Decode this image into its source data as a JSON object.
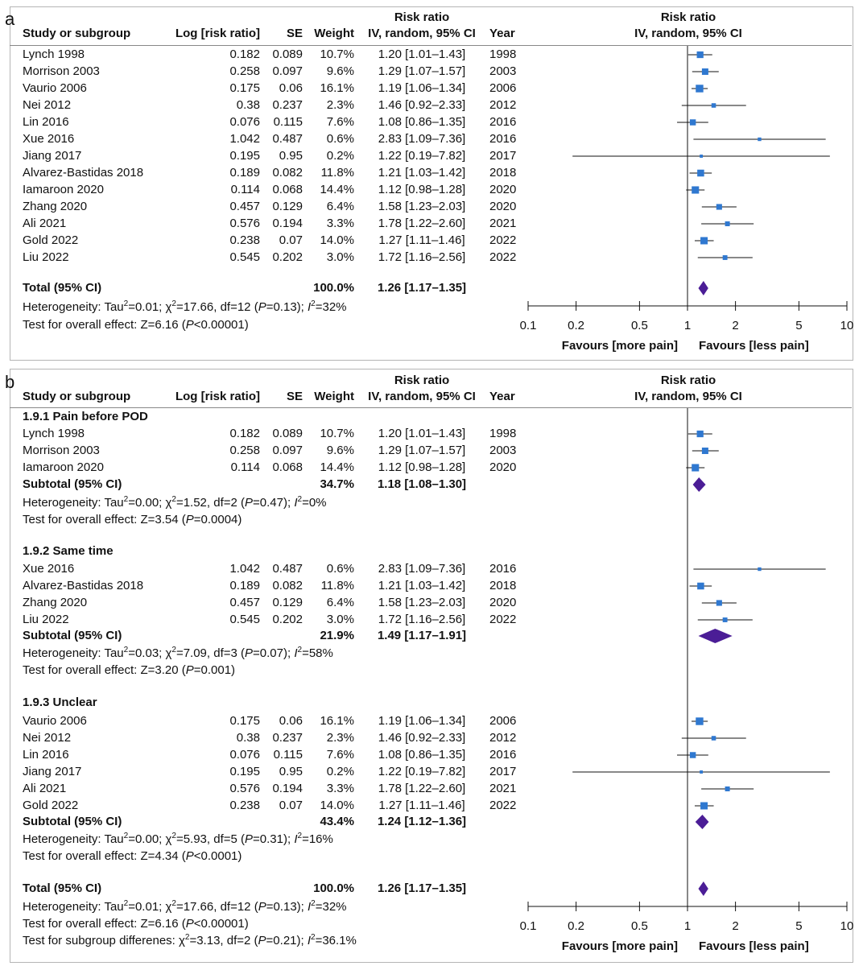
{
  "chart_data": {
    "type": "forest",
    "axis": {
      "scale": "log",
      "ticks": [
        "0.1",
        "0.2",
        "0.5",
        "1",
        "2",
        "5",
        "10"
      ],
      "tick_values": [
        0.1,
        0.2,
        0.5,
        1,
        2,
        5,
        10
      ],
      "left_label": "Favours [more pain]",
      "right_label": "Favours [less pain]"
    },
    "colors": {
      "square": "#2f78d0",
      "diamond": "#4b1d96",
      "line": "#111111"
    },
    "panels": [
      {
        "label": "a",
        "headers": {
          "study": "Study or subgroup",
          "log": "Log [risk ratio]",
          "se": "SE",
          "weight": "Weight",
          "rr_top": "Risk ratio",
          "rr_bottom": "IV, random, 95% CI",
          "year": "Year",
          "plot_top": "Risk ratio",
          "plot_bottom": "IV, random, 95% CI"
        },
        "groups": [
          {
            "studies": [
              {
                "study": "Lynch 1998",
                "log": "0.182",
                "se": "0.089",
                "weight": "10.7%",
                "ci": "1.20 [1.01–1.43]",
                "year": "1998",
                "rr": 1.2,
                "lo": 1.01,
                "hi": 1.43,
                "w": 10.7
              },
              {
                "study": "Morrison 2003",
                "log": "0.258",
                "se": "0.097",
                "weight": "9.6%",
                "ci": "1.29 [1.07–1.57]",
                "year": "2003",
                "rr": 1.29,
                "lo": 1.07,
                "hi": 1.57,
                "w": 9.6
              },
              {
                "study": "Vaurio 2006",
                "log": "0.175",
                "se": "0.06",
                "weight": "16.1%",
                "ci": "1.19 [1.06–1.34]",
                "year": "2006",
                "rr": 1.19,
                "lo": 1.06,
                "hi": 1.34,
                "w": 16.1
              },
              {
                "study": "Nei 2012",
                "log": "0.38",
                "se": "0.237",
                "weight": "2.3%",
                "ci": "1.46 [0.92–2.33]",
                "year": "2012",
                "rr": 1.46,
                "lo": 0.92,
                "hi": 2.33,
                "w": 2.3
              },
              {
                "study": "Lin 2016",
                "log": "0.076",
                "se": "0.115",
                "weight": "7.6%",
                "ci": "1.08 [0.86–1.35]",
                "year": "2016",
                "rr": 1.08,
                "lo": 0.86,
                "hi": 1.35,
                "w": 7.6
              },
              {
                "study": "Xue 2016",
                "log": "1.042",
                "se": "0.487",
                "weight": "0.6%",
                "ci": "2.83 [1.09–7.36]",
                "year": "2016",
                "rr": 2.83,
                "lo": 1.09,
                "hi": 7.36,
                "w": 0.6
              },
              {
                "study": "Jiang 2017",
                "log": "0.195",
                "se": "0.95",
                "weight": "0.2%",
                "ci": "1.22 [0.19–7.82]",
                "year": "2017",
                "rr": 1.22,
                "lo": 0.19,
                "hi": 7.82,
                "w": 0.2
              },
              {
                "study": "Alvarez-Bastidas 2018",
                "log": "0.189",
                "se": "0.082",
                "weight": "11.8%",
                "ci": "1.21 [1.03–1.42]",
                "year": "2018",
                "rr": 1.21,
                "lo": 1.03,
                "hi": 1.42,
                "w": 11.8
              },
              {
                "study": "Iamaroon 2020",
                "log": "0.114",
                "se": "0.068",
                "weight": "14.4%",
                "ci": "1.12 [0.98–1.28]",
                "year": "2020",
                "rr": 1.12,
                "lo": 0.98,
                "hi": 1.28,
                "w": 14.4
              },
              {
                "study": "Zhang 2020",
                "log": "0.457",
                "se": "0.129",
                "weight": "6.4%",
                "ci": "1.58 [1.23–2.03]",
                "year": "2020",
                "rr": 1.58,
                "lo": 1.23,
                "hi": 2.03,
                "w": 6.4
              },
              {
                "study": "Ali 2021",
                "log": "0.576",
                "se": "0.194",
                "weight": "3.3%",
                "ci": "1.78 [1.22–2.60]",
                "year": "2021",
                "rr": 1.78,
                "lo": 1.22,
                "hi": 2.6,
                "w": 3.3
              },
              {
                "study": "Gold 2022",
                "log": "0.238",
                "se": "0.07",
                "weight": "14.0%",
                "ci": "1.27 [1.11–1.46]",
                "year": "2022",
                "rr": 1.27,
                "lo": 1.11,
                "hi": 1.46,
                "w": 14.0
              },
              {
                "study": "Liu 2022",
                "log": "0.545",
                "se": "0.202",
                "weight": "3.0%",
                "ci": "1.72 [1.16–2.56]",
                "year": "2022",
                "rr": 1.72,
                "lo": 1.16,
                "hi": 2.56,
                "w": 3.0
              }
            ]
          }
        ],
        "total": {
          "label": "Total (95% CI)",
          "weight": "100.0%",
          "ci": "1.26 [1.17–1.35]",
          "rr": 1.26,
          "lo": 1.17,
          "hi": 1.35,
          "notes": [
            [
              {
                "t": "Heterogeneity: Tau"
              },
              {
                "t": "2",
                "sup": true
              },
              {
                "t": "=0.01; "
              },
              {
                "t": "χ"
              },
              {
                "t": "2",
                "sup": true
              },
              {
                "t": "=17.66, df=12 ("
              },
              {
                "t": "P",
                "i": true
              },
              {
                "t": "=0.13); "
              },
              {
                "t": "I",
                "i": true
              },
              {
                "t": "2",
                "sup": true
              },
              {
                "t": "=32%"
              }
            ],
            [
              {
                "t": "Test for overall effect: Z=6.16 ("
              },
              {
                "t": "P",
                "i": true
              },
              {
                "t": "<0.00001)"
              }
            ]
          ]
        }
      },
      {
        "label": "b",
        "headers": {
          "study": "Study or subgroup",
          "log": "Log [risk ratio]",
          "se": "SE",
          "weight": "Weight",
          "rr_top": "Risk ratio",
          "rr_bottom": "IV, random, 95% CI",
          "year": "Year",
          "plot_top": "Risk ratio",
          "plot_bottom": "IV, random, 95% CI"
        },
        "groups": [
          {
            "title": "1.9.1 Pain before POD",
            "studies": [
              {
                "study": "Lynch 1998",
                "log": "0.182",
                "se": "0.089",
                "weight": "10.7%",
                "ci": "1.20 [1.01–1.43]",
                "year": "1998",
                "rr": 1.2,
                "lo": 1.01,
                "hi": 1.43,
                "w": 10.7
              },
              {
                "study": "Morrison 2003",
                "log": "0.258",
                "se": "0.097",
                "weight": "9.6%",
                "ci": "1.29 [1.07–1.57]",
                "year": "2003",
                "rr": 1.29,
                "lo": 1.07,
                "hi": 1.57,
                "w": 9.6
              },
              {
                "study": "Iamaroon 2020",
                "log": "0.114",
                "se": "0.068",
                "weight": "14.4%",
                "ci": "1.12 [0.98–1.28]",
                "year": "2020",
                "rr": 1.12,
                "lo": 0.98,
                "hi": 1.28,
                "w": 14.4
              }
            ],
            "subtotal": {
              "label": "Subtotal (95% CI)",
              "weight": "34.7%",
              "ci": "1.18 [1.08–1.30]",
              "rr": 1.18,
              "lo": 1.08,
              "hi": 1.3
            },
            "notes": [
              [
                {
                  "t": "Heterogeneity: Tau"
                },
                {
                  "t": "2",
                  "sup": true
                },
                {
                  "t": "=0.00; "
                },
                {
                  "t": "χ"
                },
                {
                  "t": "2",
                  "sup": true
                },
                {
                  "t": "=1.52, df=2 ("
                },
                {
                  "t": "P",
                  "i": true
                },
                {
                  "t": "=0.47); "
                },
                {
                  "t": "I",
                  "i": true
                },
                {
                  "t": "2",
                  "sup": true
                },
                {
                  "t": "=0%"
                }
              ],
              [
                {
                  "t": "Test for overall effect: Z=3.54 ("
                },
                {
                  "t": "P",
                  "i": true
                },
                {
                  "t": "=0.0004)"
                }
              ]
            ]
          },
          {
            "title": "1.9.2 Same time",
            "studies": [
              {
                "study": "Xue 2016",
                "log": "1.042",
                "se": "0.487",
                "weight": "0.6%",
                "ci": "2.83 [1.09–7.36]",
                "year": "2016",
                "rr": 2.83,
                "lo": 1.09,
                "hi": 7.36,
                "w": 0.6
              },
              {
                "study": "Alvarez-Bastidas 2018",
                "log": "0.189",
                "se": "0.082",
                "weight": "11.8%",
                "ci": "1.21 [1.03–1.42]",
                "year": "2018",
                "rr": 1.21,
                "lo": 1.03,
                "hi": 1.42,
                "w": 11.8
              },
              {
                "study": "Zhang 2020",
                "log": "0.457",
                "se": "0.129",
                "weight": "6.4%",
                "ci": "1.58 [1.23–2.03]",
                "year": "2020",
                "rr": 1.58,
                "lo": 1.23,
                "hi": 2.03,
                "w": 6.4
              },
              {
                "study": "Liu 2022",
                "log": "0.545",
                "se": "0.202",
                "weight": "3.0%",
                "ci": "1.72 [1.16–2.56]",
                "year": "2022",
                "rr": 1.72,
                "lo": 1.16,
                "hi": 2.56,
                "w": 3.0
              }
            ],
            "subtotal": {
              "label": "Subtotal (95% CI)",
              "weight": "21.9%",
              "ci": "1.49 [1.17–1.91]",
              "rr": 1.49,
              "lo": 1.17,
              "hi": 1.91
            },
            "notes": [
              [
                {
                  "t": "Heterogeneity: Tau"
                },
                {
                  "t": "2",
                  "sup": true
                },
                {
                  "t": "=0.03; "
                },
                {
                  "t": "χ"
                },
                {
                  "t": "2",
                  "sup": true
                },
                {
                  "t": "=7.09, df=3 ("
                },
                {
                  "t": "P",
                  "i": true
                },
                {
                  "t": "=0.07); "
                },
                {
                  "t": "I",
                  "i": true
                },
                {
                  "t": "2",
                  "sup": true
                },
                {
                  "t": "=58%"
                }
              ],
              [
                {
                  "t": "Test for overall effect: Z=3.20 ("
                },
                {
                  "t": "P",
                  "i": true
                },
                {
                  "t": "=0.001)"
                }
              ]
            ]
          },
          {
            "title": "1.9.3 Unclear",
            "studies": [
              {
                "study": "Vaurio 2006",
                "log": "0.175",
                "se": "0.06",
                "weight": "16.1%",
                "ci": "1.19 [1.06–1.34]",
                "year": "2006",
                "rr": 1.19,
                "lo": 1.06,
                "hi": 1.34,
                "w": 16.1
              },
              {
                "study": "Nei 2012",
                "log": "0.38",
                "se": "0.237",
                "weight": "2.3%",
                "ci": "1.46 [0.92–2.33]",
                "year": "2012",
                "rr": 1.46,
                "lo": 0.92,
                "hi": 2.33,
                "w": 2.3
              },
              {
                "study": "Lin 2016",
                "log": "0.076",
                "se": "0.115",
                "weight": "7.6%",
                "ci": "1.08 [0.86–1.35]",
                "year": "2016",
                "rr": 1.08,
                "lo": 0.86,
                "hi": 1.35,
                "w": 7.6
              },
              {
                "study": "Jiang 2017",
                "log": "0.195",
                "se": "0.95",
                "weight": "0.2%",
                "ci": "1.22 [0.19–7.82]",
                "year": "2017",
                "rr": 1.22,
                "lo": 0.19,
                "hi": 7.82,
                "w": 0.2
              },
              {
                "study": "Ali 2021",
                "log": "0.576",
                "se": "0.194",
                "weight": "3.3%",
                "ci": "1.78 [1.22–2.60]",
                "year": "2021",
                "rr": 1.78,
                "lo": 1.22,
                "hi": 2.6,
                "w": 3.3
              },
              {
                "study": "Gold 2022",
                "log": "0.238",
                "se": "0.07",
                "weight": "14.0%",
                "ci": "1.27 [1.11–1.46]",
                "year": "2022",
                "rr": 1.27,
                "lo": 1.11,
                "hi": 1.46,
                "w": 14.0
              }
            ],
            "subtotal": {
              "label": "Subtotal (95% CI)",
              "weight": "43.4%",
              "ci": "1.24 [1.12–1.36]",
              "rr": 1.24,
              "lo": 1.12,
              "hi": 1.36
            },
            "notes": [
              [
                {
                  "t": "Heterogeneity: Tau"
                },
                {
                  "t": "2",
                  "sup": true
                },
                {
                  "t": "=0.00; "
                },
                {
                  "t": "χ"
                },
                {
                  "t": "2",
                  "sup": true
                },
                {
                  "t": "=5.93, df=5 ("
                },
                {
                  "t": "P",
                  "i": true
                },
                {
                  "t": "=0.31); "
                },
                {
                  "t": "I",
                  "i": true
                },
                {
                  "t": "2",
                  "sup": true
                },
                {
                  "t": "=16%"
                }
              ],
              [
                {
                  "t": "Test for overall effect: Z=4.34 ("
                },
                {
                  "t": "P",
                  "i": true
                },
                {
                  "t": "<0.0001)"
                }
              ]
            ]
          }
        ],
        "total": {
          "label": "Total (95% CI)",
          "weight": "100.0%",
          "ci": "1.26 [1.17–1.35]",
          "rr": 1.26,
          "lo": 1.17,
          "hi": 1.35,
          "notes": [
            [
              {
                "t": "Heterogeneity: Tau"
              },
              {
                "t": "2",
                "sup": true
              },
              {
                "t": "=0.01; "
              },
              {
                "t": "χ"
              },
              {
                "t": "2",
                "sup": true
              },
              {
                "t": "=17.66, df=12 ("
              },
              {
                "t": "P",
                "i": true
              },
              {
                "t": "=0.13); "
              },
              {
                "t": "I",
                "i": true
              },
              {
                "t": "2",
                "sup": true
              },
              {
                "t": "=32%"
              }
            ],
            [
              {
                "t": "Test for overall effect: Z=6.16 ("
              },
              {
                "t": "P",
                "i": true
              },
              {
                "t": "<0.00001)"
              }
            ],
            [
              {
                "t": "Test for subgroup differenes: "
              },
              {
                "t": "χ"
              },
              {
                "t": "2",
                "sup": true
              },
              {
                "t": "=3.13, df=2 ("
              },
              {
                "t": "P",
                "i": true
              },
              {
                "t": "=0.21); "
              },
              {
                "t": "I",
                "i": true
              },
              {
                "t": "2",
                "sup": true
              },
              {
                "t": "=36.1%"
              }
            ]
          ]
        }
      }
    ]
  }
}
